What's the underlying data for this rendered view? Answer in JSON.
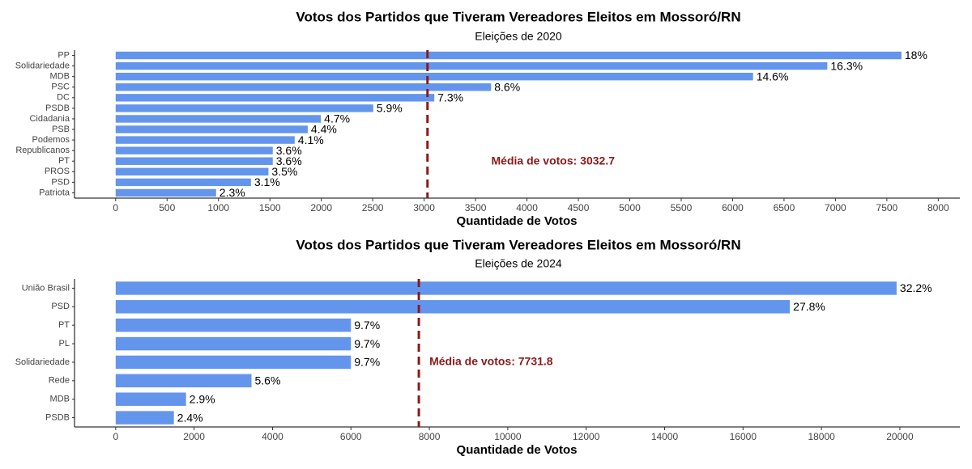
{
  "chart_data": [
    {
      "type": "bar",
      "orientation": "horizontal",
      "title": "Votos dos Partidos que Tiveram Vereadores Eleitos em Mossoró/RN",
      "subtitle": "Eleições de 2020",
      "x_label": "Quantidade de Votos",
      "categories": [
        "PP",
        "Solidariedade",
        "MDB",
        "PSC",
        "DC",
        "PSDB",
        "Cidadania",
        "PSB",
        "Podemos",
        "Republicanos",
        "PT",
        "PROS",
        "PSD",
        "Patriota"
      ],
      "values": [
        7642,
        6921,
        6199,
        3651,
        3099,
        2505,
        1996,
        1868,
        1741,
        1528,
        1528,
        1486,
        1316,
        977
      ],
      "value_labels": [
        "18%",
        "16.3%",
        "14.6%",
        "8.6%",
        "7.3%",
        "5.9%",
        "4.7%",
        "4.4%",
        "4.1%",
        "3.6%",
        "3.6%",
        "3.5%",
        "3.1%",
        "2.3%"
      ],
      "color": "#6495ed",
      "mean": 3032.7,
      "mean_label": "Média de votos: 3032.7",
      "mean_color": "#8b1a1a",
      "xlim": [
        -400,
        8210
      ],
      "xticks": [
        0,
        500,
        1000,
        1500,
        2000,
        2500,
        3000,
        3500,
        4000,
        4500,
        5000,
        5500,
        6000,
        6500,
        7000,
        7500,
        8000
      ]
    },
    {
      "type": "bar",
      "orientation": "horizontal",
      "title": "Votos dos Partidos que Tiveram Vereadores Eleitos em Mossoró/RN",
      "subtitle": "Eleições de 2024",
      "x_label": "Quantidade de Votos",
      "categories": [
        "União Brasil",
        "PSD",
        "PT",
        "PL",
        "Solidariedade",
        "Rede",
        "MDB",
        "PSDB"
      ],
      "values": [
        19917,
        17195,
        6000,
        6000,
        6000,
        3464,
        1794,
        1484
      ],
      "value_labels": [
        "32.2%",
        "27.8%",
        "9.7%",
        "9.7%",
        "9.7%",
        "5.6%",
        "2.9%",
        "2.4%"
      ],
      "color": "#6495ed",
      "mean": 7731.8,
      "mean_label": "Média de votos: 7731.8",
      "mean_color": "#8b1a1a",
      "xlim": [
        -1050,
        21530
      ],
      "xticks": [
        0,
        2000,
        4000,
        6000,
        8000,
        10000,
        12000,
        14000,
        16000,
        18000,
        20000
      ]
    }
  ]
}
